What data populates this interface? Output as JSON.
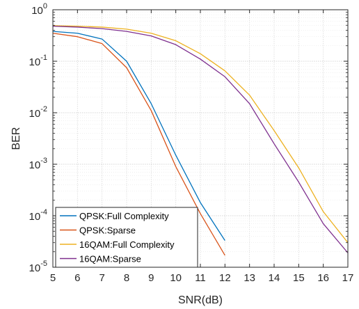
{
  "chart_data": {
    "type": "line",
    "title": "",
    "xlabel": "SNR(dB)",
    "ylabel": "BER",
    "xlim": [
      5,
      17
    ],
    "ylim": [
      1e-05,
      1
    ],
    "yscale": "log",
    "grid": true,
    "legend_position": "bottom-left",
    "x_ticks": [
      "5",
      "6",
      "7",
      "8",
      "9",
      "10",
      "11",
      "12",
      "13",
      "14",
      "15",
      "16",
      "17"
    ],
    "y_ticks": [
      {
        "base": "10",
        "exp": "0"
      },
      {
        "base": "10",
        "exp": "-1"
      },
      {
        "base": "10",
        "exp": "-2"
      },
      {
        "base": "10",
        "exp": "-3"
      },
      {
        "base": "10",
        "exp": "-4"
      },
      {
        "base": "10",
        "exp": "-5"
      }
    ],
    "series": [
      {
        "name": "QPSK:Full Complexity",
        "color": "#0072BD",
        "x": [
          5,
          6,
          7,
          8,
          9,
          10,
          11,
          12
        ],
        "y": [
          0.38,
          0.35,
          0.27,
          0.1,
          0.015,
          0.0015,
          0.00018,
          3.3e-05
        ]
      },
      {
        "name": "QPSK:Sparse",
        "color": "#D95319",
        "x": [
          5,
          6,
          7,
          8,
          9,
          10,
          11,
          12
        ],
        "y": [
          0.35,
          0.3,
          0.22,
          0.075,
          0.011,
          0.0009,
          0.00011,
          1.7e-05
        ]
      },
      {
        "name": "16QAM:Full Complexity",
        "color": "#EDB120",
        "x": [
          5,
          6,
          7,
          8,
          9,
          10,
          11,
          12,
          13,
          14,
          15,
          16,
          17
        ],
        "y": [
          0.49,
          0.48,
          0.46,
          0.42,
          0.35,
          0.25,
          0.14,
          0.065,
          0.022,
          0.0045,
          0.00085,
          0.00012,
          3e-05
        ]
      },
      {
        "name": "16QAM:Sparse",
        "color": "#7E2F8E",
        "x": [
          5,
          6,
          7,
          8,
          9,
          10,
          11,
          12,
          13,
          14,
          15,
          16,
          17
        ],
        "y": [
          0.48,
          0.46,
          0.43,
          0.38,
          0.31,
          0.21,
          0.11,
          0.05,
          0.015,
          0.0025,
          0.00045,
          7e-05,
          1.9e-05
        ]
      }
    ]
  }
}
